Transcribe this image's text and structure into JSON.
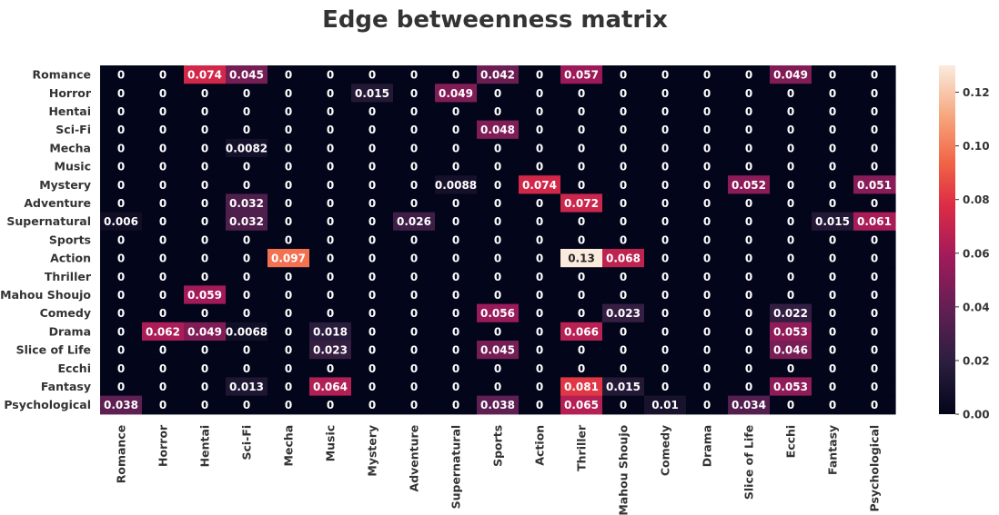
{
  "chart_data": {
    "type": "heatmap",
    "title": "Edge betweenness matrix",
    "rows": [
      "Romance",
      "Horror",
      "Hentai",
      "Sci-Fi",
      "Mecha",
      "Music",
      "Mystery",
      "Adventure",
      "Supernatural",
      "Sports",
      "Action",
      "Thriller",
      "Mahou Shoujo",
      "Comedy",
      "Drama",
      "Slice of Life",
      "Ecchi",
      "Fantasy",
      "Psychological"
    ],
    "columns": [
      "Romance",
      "Horror",
      "Hentai",
      "Sci-Fi",
      "Mecha",
      "Music",
      "Mystery",
      "Adventure",
      "Supernatural",
      "Sports",
      "Action",
      "Thriller",
      "Mahou Shoujo",
      "Comedy",
      "Drama",
      "Slice of Life",
      "Ecchi",
      "Fantasy",
      "Psychological"
    ],
    "values": [
      [
        0,
        0,
        0.074,
        0.045,
        0,
        0,
        0,
        0,
        0,
        0.042,
        0,
        0.057,
        0,
        0,
        0,
        0,
        0.049,
        0,
        0
      ],
      [
        0,
        0,
        0,
        0,
        0,
        0,
        0.015,
        0,
        0.049,
        0,
        0,
        0,
        0,
        0,
        0,
        0,
        0,
        0,
        0
      ],
      [
        0,
        0,
        0,
        0,
        0,
        0,
        0,
        0,
        0,
        0,
        0,
        0,
        0,
        0,
        0,
        0,
        0,
        0,
        0
      ],
      [
        0,
        0,
        0,
        0,
        0,
        0,
        0,
        0,
        0,
        0.048,
        0,
        0,
        0,
        0,
        0,
        0,
        0,
        0,
        0
      ],
      [
        0,
        0,
        0,
        0.0082,
        0,
        0,
        0,
        0,
        0,
        0,
        0,
        0,
        0,
        0,
        0,
        0,
        0,
        0,
        0
      ],
      [
        0,
        0,
        0,
        0,
        0,
        0,
        0,
        0,
        0,
        0,
        0,
        0,
        0,
        0,
        0,
        0,
        0,
        0,
        0
      ],
      [
        0,
        0,
        0,
        0,
        0,
        0,
        0,
        0,
        0.0088,
        0,
        0.074,
        0,
        0,
        0,
        0,
        0.052,
        0,
        0,
        0.051
      ],
      [
        0,
        0,
        0,
        0.032,
        0,
        0,
        0,
        0,
        0,
        0,
        0,
        0.072,
        0,
        0,
        0,
        0,
        0,
        0,
        0
      ],
      [
        0.006,
        0,
        0,
        0.032,
        0,
        0,
        0,
        0.026,
        0,
        0,
        0,
        0,
        0,
        0,
        0,
        0,
        0,
        0.015,
        0.061
      ],
      [
        0,
        0,
        0,
        0,
        0,
        0,
        0,
        0,
        0,
        0,
        0,
        0,
        0,
        0,
        0,
        0,
        0,
        0,
        0
      ],
      [
        0,
        0,
        0,
        0,
        0.097,
        0,
        0,
        0,
        0,
        0,
        0,
        0.13,
        0.068,
        0,
        0,
        0,
        0,
        0,
        0
      ],
      [
        0,
        0,
        0,
        0,
        0,
        0,
        0,
        0,
        0,
        0,
        0,
        0,
        0,
        0,
        0,
        0,
        0,
        0,
        0
      ],
      [
        0,
        0,
        0.059,
        0,
        0,
        0,
        0,
        0,
        0,
        0,
        0,
        0,
        0,
        0,
        0,
        0,
        0,
        0,
        0
      ],
      [
        0,
        0,
        0,
        0,
        0,
        0,
        0,
        0,
        0,
        0.056,
        0,
        0,
        0.023,
        0,
        0,
        0,
        0.022,
        0,
        0
      ],
      [
        0,
        0.062,
        0.049,
        0.0068,
        0,
        0.018,
        0,
        0,
        0,
        0,
        0,
        0.066,
        0,
        0,
        0,
        0,
        0.053,
        0,
        0
      ],
      [
        0,
        0,
        0,
        0,
        0,
        0.023,
        0,
        0,
        0,
        0.045,
        0,
        0,
        0,
        0,
        0,
        0,
        0.046,
        0,
        0
      ],
      [
        0,
        0,
        0,
        0,
        0,
        0,
        0,
        0,
        0,
        0,
        0,
        0,
        0,
        0,
        0,
        0,
        0,
        0,
        0
      ],
      [
        0,
        0,
        0,
        0.013,
        0,
        0.064,
        0,
        0,
        0,
        0,
        0,
        0.081,
        0.015,
        0,
        0,
        0,
        0.053,
        0,
        0
      ],
      [
        0.038,
        0,
        0,
        0,
        0,
        0,
        0,
        0,
        0,
        0.038,
        0,
        0.065,
        0,
        0.01,
        0,
        0.034,
        0,
        0,
        0
      ]
    ],
    "value_range": [
      0,
      0.13
    ],
    "colormap": "rocket",
    "colorbar": {
      "ticks": [
        0,
        0.02,
        0.04,
        0.06,
        0.08,
        0.1,
        0.12
      ],
      "tick_labels": [
        "0.00",
        "0.02",
        "0.04",
        "0.06",
        "0.08",
        "0.10",
        "0.12"
      ],
      "placement": "right"
    },
    "xlabel": "",
    "ylabel": "",
    "grid": false
  }
}
